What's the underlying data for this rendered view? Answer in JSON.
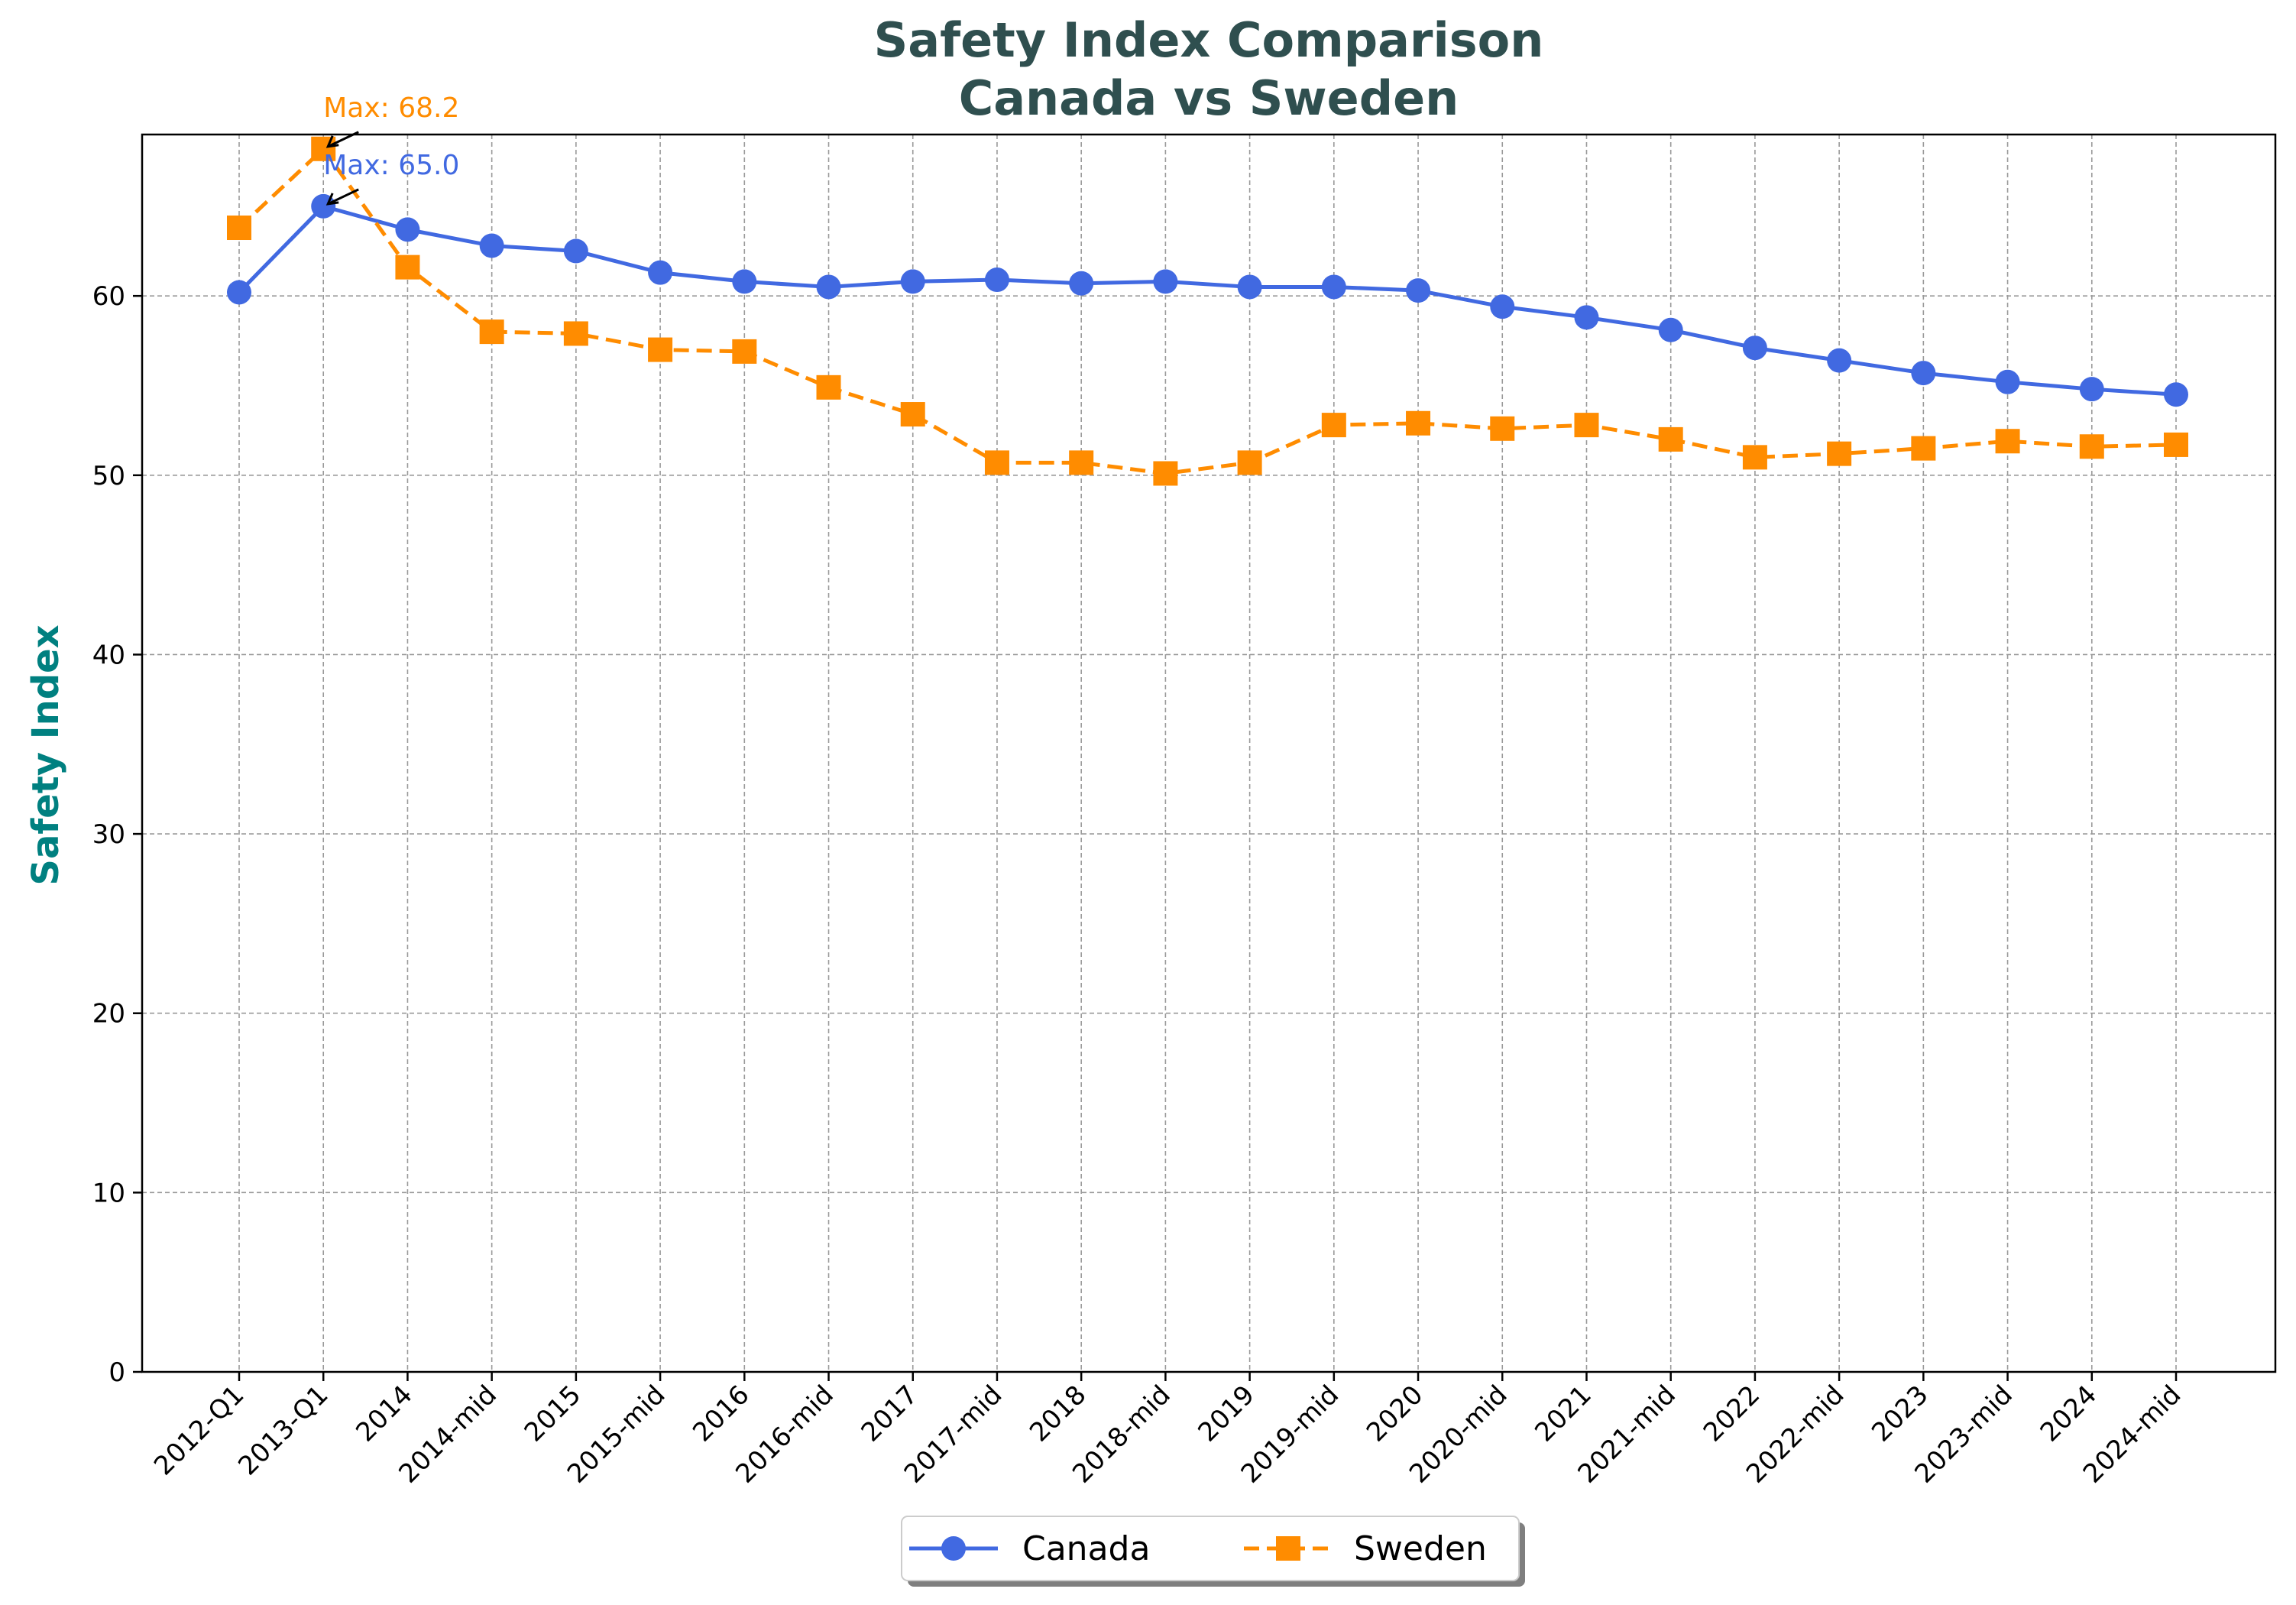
{
  "chart_data": {
    "type": "line",
    "title": "Safety Index Comparison",
    "subtitle": "Canada vs Sweden",
    "xlabel": "",
    "ylabel": "Safety Index",
    "ylim": [
      0,
      69
    ],
    "yticks": [
      0,
      10,
      20,
      30,
      40,
      50,
      60
    ],
    "grid": true,
    "legend_position": "bottom-center",
    "categories": [
      "2012-Q1",
      "2013-Q1",
      "2014",
      "2014-mid",
      "2015",
      "2015-mid",
      "2016",
      "2016-mid",
      "2017",
      "2017-mid",
      "2018",
      "2018-mid",
      "2019",
      "2019-mid",
      "2020",
      "2020-mid",
      "2021",
      "2021-mid",
      "2022",
      "2022-mid",
      "2023",
      "2023-mid",
      "2024",
      "2024-mid"
    ],
    "series": [
      {
        "name": "Canada",
        "color": "#4169E1",
        "marker": "circle",
        "line_style": "solid",
        "values": [
          60.2,
          65.0,
          63.7,
          62.8,
          62.5,
          61.3,
          60.8,
          60.5,
          60.8,
          60.9,
          60.7,
          60.8,
          60.5,
          60.5,
          60.3,
          59.4,
          58.8,
          58.1,
          57.1,
          56.4,
          55.7,
          55.2,
          54.8,
          54.5
        ]
      },
      {
        "name": "Sweden",
        "color": "#FF8C00",
        "marker": "square",
        "line_style": "dashed",
        "values": [
          63.8,
          68.2,
          61.6,
          58.0,
          57.9,
          57.0,
          56.9,
          54.9,
          53.4,
          50.7,
          50.7,
          50.1,
          50.7,
          52.8,
          52.9,
          52.6,
          52.8,
          52.0,
          51.0,
          51.2,
          51.5,
          51.9,
          51.6,
          51.7
        ]
      }
    ],
    "annotations": [
      {
        "text": "Max: 68.2",
        "series": "Sweden",
        "category": "2013-Q1",
        "value": 68.2
      },
      {
        "text": "Max: 65.0",
        "series": "Canada",
        "category": "2013-Q1",
        "value": 65.0
      }
    ]
  },
  "colors": {
    "title": "#2F4F4F",
    "ylabel": "#008080",
    "grid": "#999999",
    "axis": "#000000"
  }
}
